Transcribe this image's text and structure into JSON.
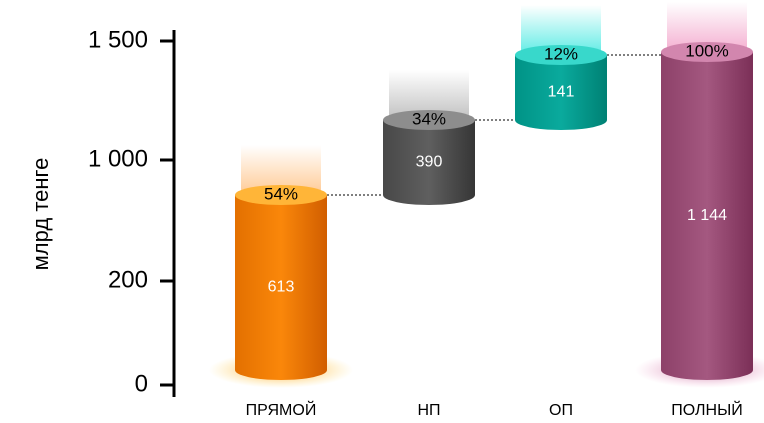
{
  "chart_data": {
    "type": "bar",
    "subtype": "waterfall",
    "ylabel": "млрд тенге",
    "yticks": [
      "0",
      "200",
      "1 000",
      "1 500"
    ],
    "categories": [
      "ПРЯМОЙ",
      "НП",
      "ОП",
      "ПОЛНЫЙ"
    ],
    "values": [
      613,
      390,
      141,
      1144
    ],
    "value_labels": [
      "613",
      "390",
      "141",
      "1 144"
    ],
    "percent_labels": [
      "54%",
      "34%",
      "12%",
      "100%"
    ],
    "starts": [
      0,
      613,
      1003,
      0
    ],
    "ends": [
      613,
      1003,
      1144,
      1144
    ],
    "colors": [
      "#f07d00",
      "#555555",
      "#00a093",
      "#9a4e76"
    ],
    "grid": false,
    "legend": "none",
    "connectors": true
  }
}
